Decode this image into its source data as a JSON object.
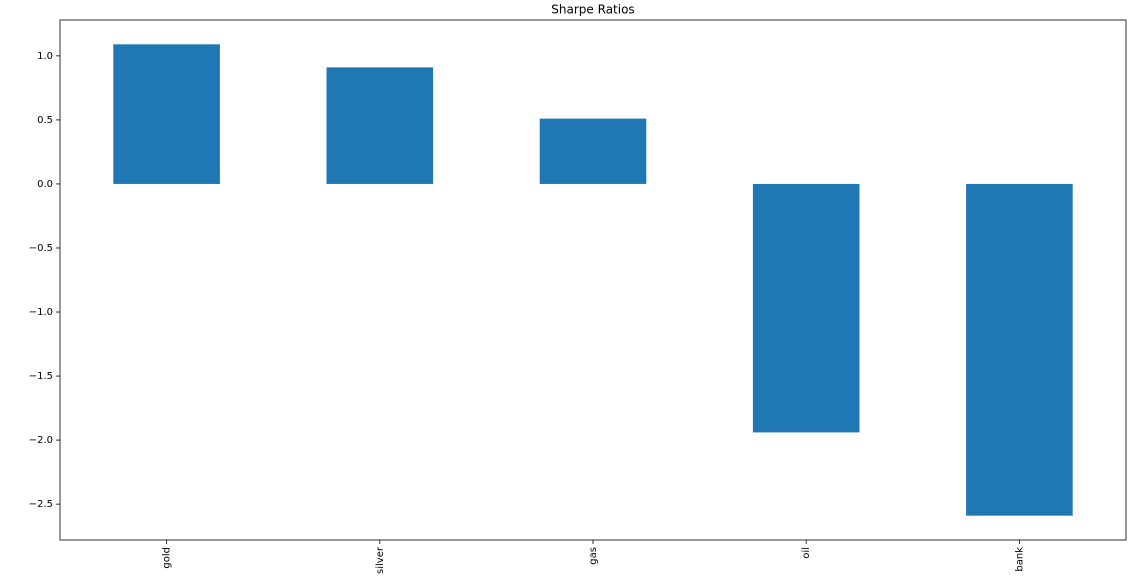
{
  "chart_data": {
    "type": "bar",
    "title": "Sharpe Ratios",
    "categories": [
      "gold",
      "silver",
      "gas",
      "oil",
      "bank"
    ],
    "values": [
      1.09,
      0.91,
      0.51,
      -1.94,
      -2.59
    ],
    "color": "#1f77b4",
    "ylim": [
      -2.78,
      1.28
    ],
    "yticks": [
      {
        "value": -2.5,
        "label": "−2.5"
      },
      {
        "value": -2.0,
        "label": "−2.0"
      },
      {
        "value": -1.5,
        "label": "−1.5"
      },
      {
        "value": -1.0,
        "label": "−1.0"
      },
      {
        "value": -0.5,
        "label": "−0.5"
      },
      {
        "value": 0.0,
        "label": "0.0"
      },
      {
        "value": 0.5,
        "label": "0.5"
      },
      {
        "value": 1.0,
        "label": "1.0"
      }
    ],
    "grid": false
  }
}
